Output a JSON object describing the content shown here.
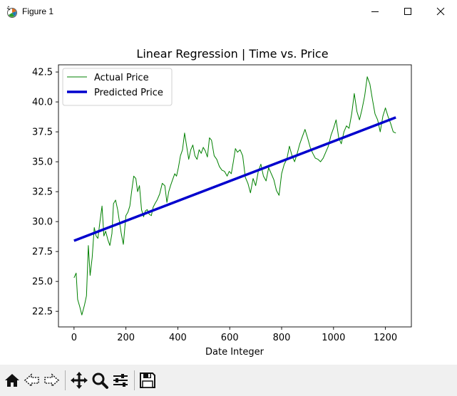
{
  "window": {
    "title": "Figure 1",
    "icon": "matplotlib-figure-icon"
  },
  "toolbar": {
    "items": [
      {
        "name": "home-icon"
      },
      {
        "name": "back-arrow-icon"
      },
      {
        "name": "forward-arrow-icon"
      },
      {
        "name": "pan-move-icon"
      },
      {
        "name": "zoom-magnifier-icon"
      },
      {
        "name": "subplots-sliders-icon"
      },
      {
        "name": "save-floppy-icon"
      }
    ]
  },
  "chart_data": {
    "type": "line",
    "title": "Linear Regression | Time vs. Price",
    "xlabel": "Date Integer",
    "ylabel": "",
    "xlim": [
      -60,
      1300
    ],
    "ylim": [
      21.2,
      43.1
    ],
    "xticks": [
      0,
      200,
      400,
      600,
      800,
      1000,
      1200
    ],
    "xtick_labels": [
      "0",
      "200",
      "400",
      "600",
      "800",
      "1000",
      "1200"
    ],
    "yticks": [
      22.5,
      25.0,
      27.5,
      30.0,
      32.5,
      35.0,
      37.5,
      40.0,
      42.5
    ],
    "ytick_labels": [
      "22.5",
      "25.0",
      "27.5",
      "30.0",
      "32.5",
      "35.0",
      "37.5",
      "40.0",
      "42.5"
    ],
    "grid": false,
    "legend_position": "top-left",
    "series": [
      {
        "name": "Actual Price",
        "color": "#008000",
        "style": "thin",
        "x": [
          0,
          8,
          14,
          22,
          30,
          40,
          48,
          55,
          62,
          70,
          78,
          85,
          92,
          100,
          108,
          115,
          122,
          130,
          138,
          146,
          152,
          160,
          168,
          175,
          182,
          190,
          200,
          208,
          215,
          222,
          230,
          238,
          245,
          252,
          260,
          268,
          275,
          282,
          290,
          298,
          305,
          312,
          320,
          330,
          340,
          350,
          358,
          365,
          372,
          380,
          388,
          395,
          402,
          410,
          418,
          426,
          434,
          442,
          450,
          458,
          466,
          474,
          482,
          490,
          498,
          506,
          514,
          522,
          530,
          540,
          550,
          560,
          570,
          580,
          590,
          598,
          606,
          614,
          622,
          630,
          640,
          650,
          660,
          670,
          680,
          690,
          700,
          710,
          720,
          730,
          740,
          750,
          760,
          770,
          780,
          790,
          800,
          810,
          820,
          830,
          840,
          850,
          860,
          870,
          880,
          890,
          900,
          910,
          920,
          930,
          940,
          950,
          960,
          970,
          980,
          990,
          1000,
          1010,
          1020,
          1030,
          1040,
          1050,
          1060,
          1070,
          1080,
          1090,
          1100,
          1110,
          1120,
          1130,
          1140,
          1150,
          1160,
          1170,
          1180,
          1190,
          1200,
          1210,
          1220,
          1230,
          1240
        ],
        "y": [
          25.3,
          25.7,
          23.5,
          22.9,
          22.2,
          23.0,
          23.8,
          28.0,
          25.5,
          27.0,
          29.5,
          28.8,
          28.6,
          30.0,
          31.3,
          28.8,
          29.2,
          28.5,
          28.0,
          29.0,
          31.5,
          31.8,
          31.0,
          30.0,
          29.0,
          28.1,
          30.5,
          30.8,
          31.3,
          32.5,
          33.8,
          33.6,
          32.5,
          33.0,
          31.0,
          30.4,
          30.9,
          31.0,
          30.6,
          30.5,
          31.2,
          31.5,
          31.8,
          32.3,
          33.2,
          33.0,
          31.6,
          32.5,
          33.0,
          33.5,
          34.0,
          33.8,
          34.5,
          35.5,
          36.0,
          37.4,
          36.3,
          35.2,
          36.0,
          36.4,
          35.5,
          35.2,
          36.0,
          35.7,
          36.2,
          35.9,
          35.4,
          37.0,
          36.8,
          35.5,
          35.2,
          34.6,
          34.3,
          34.2,
          33.8,
          34.2,
          34.0,
          35.0,
          36.1,
          35.8,
          36.0,
          35.5,
          33.7,
          33.2,
          32.4,
          33.6,
          33.0,
          34.2,
          34.8,
          33.8,
          33.4,
          34.5,
          34.0,
          33.5,
          32.6,
          32.2,
          34.0,
          34.8,
          35.2,
          36.3,
          35.5,
          35.0,
          35.7,
          36.5,
          37.1,
          37.7,
          37.0,
          36.2,
          35.7,
          35.3,
          35.2,
          35.0,
          35.3,
          35.8,
          36.3,
          37.2,
          37.8,
          38.5,
          37.0,
          36.5,
          37.5,
          38.0,
          37.8,
          39.0,
          40.7,
          39.2,
          38.5,
          39.4,
          40.5,
          42.1,
          41.5,
          40.2,
          39.0,
          38.5,
          37.5,
          38.8,
          39.5,
          38.8,
          38.2,
          37.5,
          37.4
        ],
        "x_unused": []
      },
      {
        "name": "Predicted Price",
        "color": "#0000cd",
        "style": "thick",
        "x": [
          0,
          1240
        ],
        "y": [
          28.4,
          38.7
        ]
      }
    ]
  }
}
